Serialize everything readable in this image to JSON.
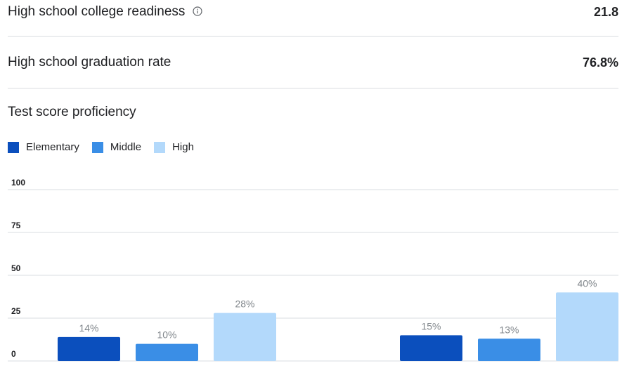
{
  "metrics": {
    "college_readiness": {
      "label": "High school college readiness",
      "value": "21.8",
      "icon": "info-icon"
    },
    "graduation_rate": {
      "label": "High school graduation rate",
      "value": "76.8%"
    }
  },
  "test_scores": {
    "title": "Test score proficiency"
  },
  "colors": {
    "elementary": "#0b4fbd",
    "middle": "#3a8ee6",
    "high": "#b3d9fb",
    "grid": "#dadce0",
    "tick_text": "#202124",
    "data_label": "#80868b"
  },
  "chart_data": {
    "type": "bar",
    "title": "Test score proficiency",
    "xlabel": "",
    "ylabel": "",
    "ylim": [
      0,
      100
    ],
    "yticks": [
      0,
      25,
      50,
      75,
      100
    ],
    "grid": true,
    "legend_placement": "top-left",
    "categories": [
      "",
      ""
    ],
    "series": [
      {
        "name": "Elementary",
        "values": [
          14,
          15
        ],
        "labels": [
          "14%",
          "15%"
        ]
      },
      {
        "name": "Middle",
        "values": [
          10,
          13
        ],
        "labels": [
          "10%",
          "13%"
        ]
      },
      {
        "name": "High",
        "values": [
          28,
          40
        ],
        "labels": [
          "28%",
          "40%"
        ]
      }
    ]
  }
}
